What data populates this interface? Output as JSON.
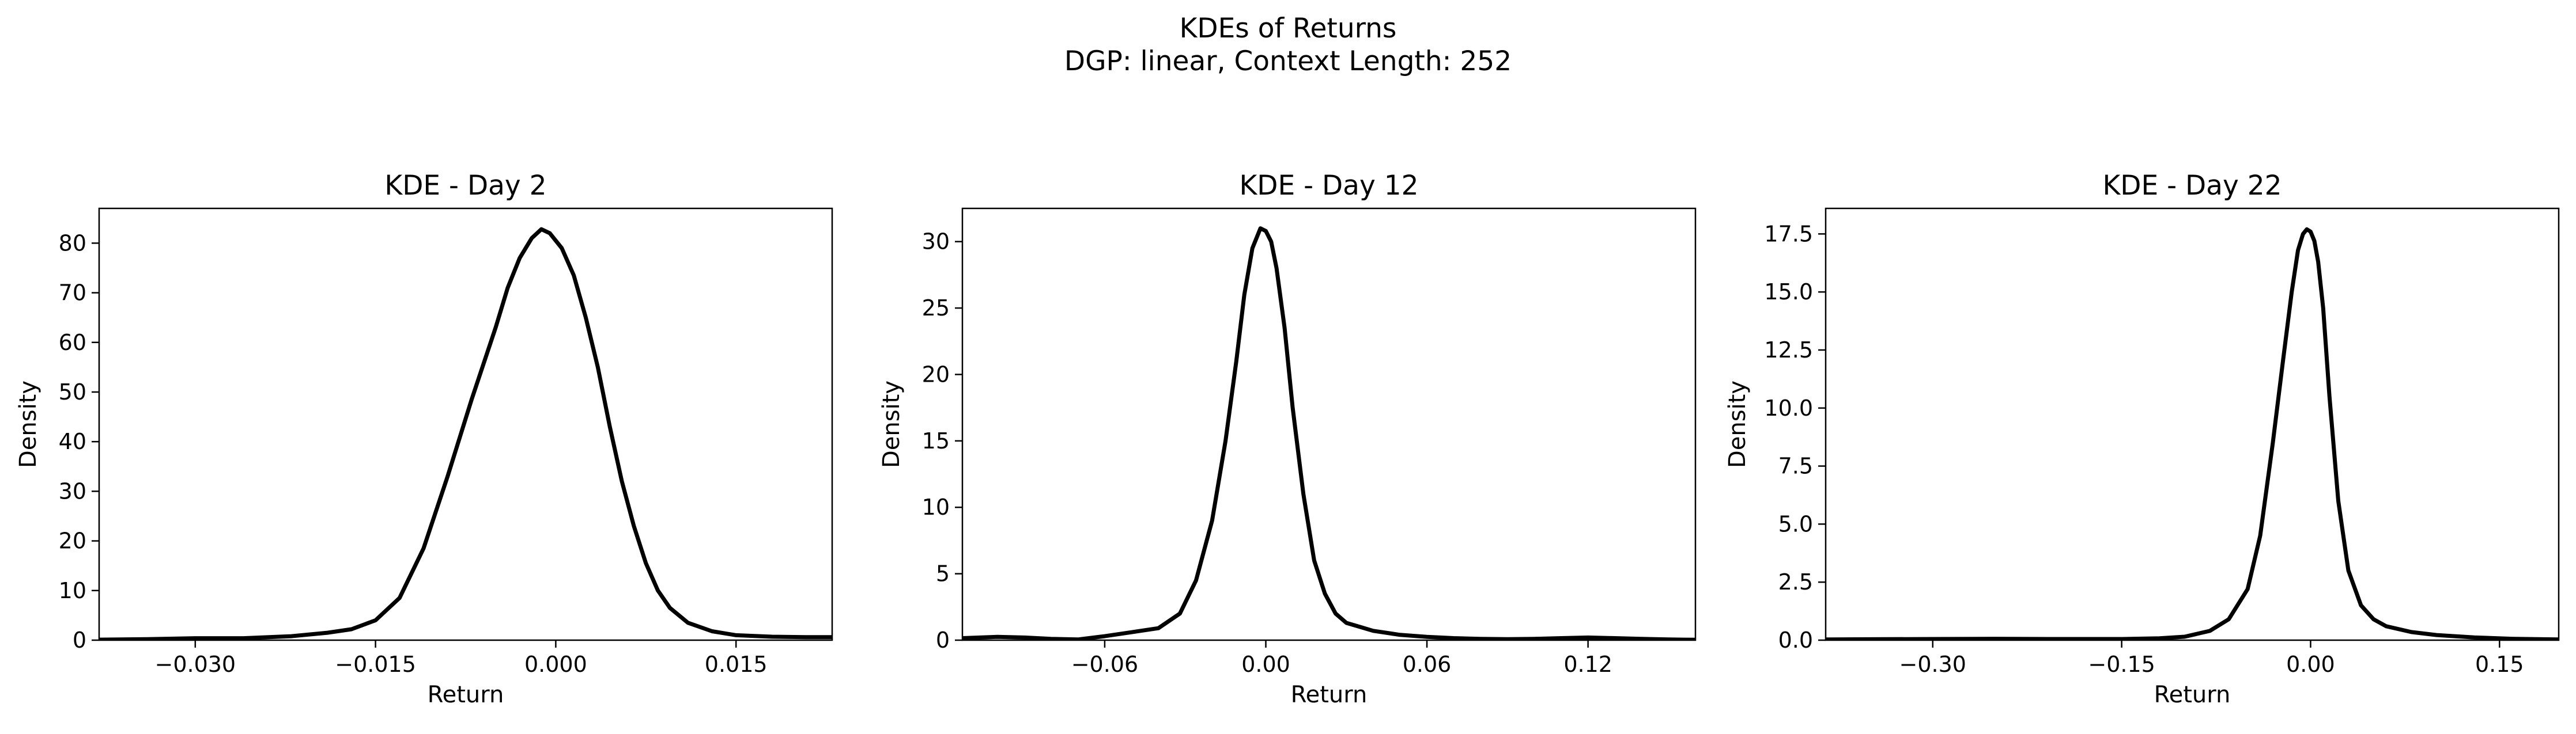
{
  "figure": {
    "suptitle_line1": "KDEs of Returns",
    "suptitle_line2": "DGP: linear, Context Length: 252"
  },
  "chart_data": [
    {
      "type": "line",
      "title": "KDE - Day 2",
      "xlabel": "Return",
      "ylabel": "Density",
      "xlim": [
        -0.038,
        0.023
      ],
      "ylim": [
        0,
        87
      ],
      "xticks": [
        -0.03,
        -0.015,
        0.0,
        0.015
      ],
      "xtick_labels": [
        "−0.030",
        "−0.015",
        "0.000",
        "0.015"
      ],
      "yticks": [
        0,
        10,
        20,
        30,
        40,
        50,
        60,
        70,
        80
      ],
      "ytick_labels": [
        "0",
        "10",
        "20",
        "30",
        "40",
        "50",
        "60",
        "70",
        "80"
      ],
      "grid": false,
      "line_color": "#000000",
      "series": [
        {
          "x": [
            -0.038,
            -0.034,
            -0.03,
            -0.026,
            -0.022,
            -0.019,
            -0.017,
            -0.015,
            -0.013,
            -0.011,
            -0.009,
            -0.007,
            -0.005,
            -0.004,
            -0.003,
            -0.002,
            -0.0012,
            -0.0005,
            0.0005,
            0.0015,
            0.0025,
            0.0035,
            0.0045,
            0.0055,
            0.0065,
            0.0075,
            0.0085,
            0.0095,
            0.011,
            0.013,
            0.015,
            0.018,
            0.021,
            0.023
          ],
          "y": [
            0.1,
            0.2,
            0.4,
            0.4,
            0.8,
            1.5,
            2.2,
            4.0,
            8.5,
            18.5,
            33.0,
            48.5,
            63.0,
            71.0,
            77.0,
            81.0,
            82.8,
            82.0,
            79.0,
            73.5,
            65.0,
            55.0,
            43.0,
            32.0,
            23.0,
            15.5,
            10.0,
            6.5,
            3.5,
            1.8,
            1.0,
            0.7,
            0.6,
            0.6
          ]
        }
      ]
    },
    {
      "type": "line",
      "title": "KDE - Day 12",
      "xlabel": "Return",
      "ylabel": "Density",
      "xlim": [
        -0.113,
        0.16
      ],
      "ylim": [
        0,
        32.5
      ],
      "xticks": [
        -0.06,
        0.0,
        0.06,
        0.12
      ],
      "xtick_labels": [
        "−0.06",
        "0.00",
        "0.06",
        "0.12"
      ],
      "yticks": [
        0,
        5,
        10,
        15,
        20,
        25,
        30
      ],
      "ytick_labels": [
        "0",
        "5",
        "10",
        "15",
        "20",
        "25",
        "30"
      ],
      "grid": false,
      "line_color": "#000000",
      "series": [
        {
          "x": [
            -0.113,
            -0.1,
            -0.09,
            -0.08,
            -0.07,
            -0.06,
            -0.05,
            -0.04,
            -0.032,
            -0.026,
            -0.02,
            -0.015,
            -0.011,
            -0.008,
            -0.005,
            -0.002,
            0.0,
            0.002,
            0.004,
            0.007,
            0.01,
            0.014,
            0.018,
            0.022,
            0.026,
            0.03,
            0.035,
            0.04,
            0.05,
            0.06,
            0.07,
            0.08,
            0.09,
            0.1,
            0.11,
            0.12,
            0.13,
            0.14,
            0.15,
            0.16
          ],
          "y": [
            0.15,
            0.25,
            0.2,
            0.1,
            0.05,
            0.3,
            0.6,
            0.9,
            2.0,
            4.5,
            9.0,
            15.0,
            21.0,
            26.0,
            29.5,
            31.0,
            30.8,
            30.0,
            28.0,
            23.5,
            17.5,
            11.0,
            6.0,
            3.5,
            2.0,
            1.3,
            1.0,
            0.7,
            0.4,
            0.25,
            0.15,
            0.1,
            0.08,
            0.1,
            0.15,
            0.2,
            0.15,
            0.1,
            0.05,
            0.03
          ]
        }
      ]
    },
    {
      "type": "line",
      "title": "KDE - Day 22",
      "xlabel": "Return",
      "ylabel": "Density",
      "xlim": [
        -0.385,
        0.197
      ],
      "ylim": [
        0,
        18.6
      ],
      "xticks": [
        -0.3,
        -0.15,
        0.0,
        0.15
      ],
      "xtick_labels": [
        "−0.30",
        "−0.15",
        "0.00",
        "0.15"
      ],
      "yticks": [
        0,
        2.5,
        5,
        7.5,
        10,
        12.5,
        15,
        17.5
      ],
      "ytick_labels": [
        "0.0",
        "2.5",
        "5.0",
        "7.5",
        "10.0",
        "12.5",
        "15.0",
        "17.5"
      ],
      "grid": false,
      "line_color": "#000000",
      "series": [
        {
          "x": [
            -0.385,
            -0.35,
            -0.3,
            -0.25,
            -0.2,
            -0.15,
            -0.12,
            -0.1,
            -0.08,
            -0.065,
            -0.05,
            -0.04,
            -0.03,
            -0.022,
            -0.015,
            -0.01,
            -0.006,
            -0.003,
            0.0,
            0.003,
            0.006,
            0.01,
            0.015,
            0.022,
            0.03,
            0.04,
            0.05,
            0.06,
            0.08,
            0.1,
            0.13,
            0.16,
            0.197
          ],
          "y": [
            0.03,
            0.04,
            0.05,
            0.06,
            0.05,
            0.05,
            0.08,
            0.15,
            0.4,
            0.9,
            2.2,
            4.5,
            8.5,
            12.0,
            15.0,
            16.8,
            17.5,
            17.7,
            17.6,
            17.2,
            16.3,
            14.3,
            10.5,
            6.0,
            3.0,
            1.5,
            0.9,
            0.6,
            0.35,
            0.22,
            0.12,
            0.06,
            0.03
          ]
        }
      ]
    }
  ]
}
